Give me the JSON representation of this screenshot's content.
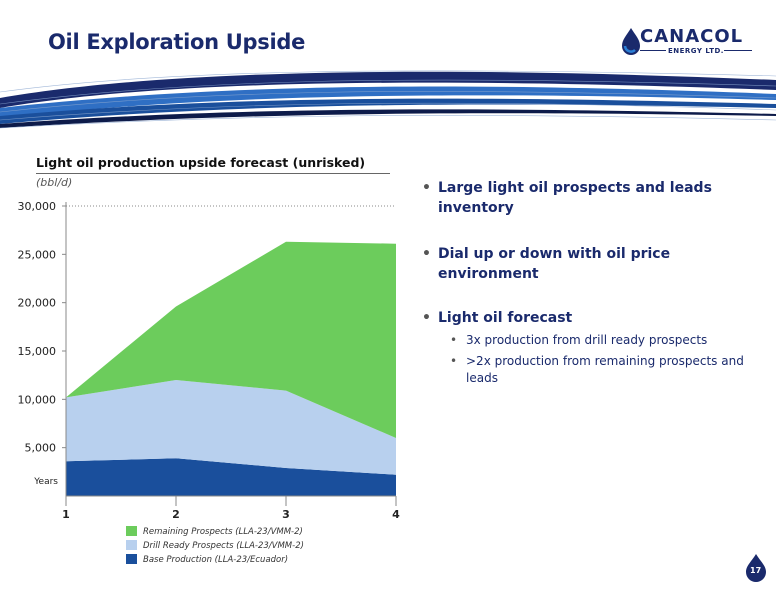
{
  "slide": {
    "title": "Oil Exploration Upside",
    "page_number": "17"
  },
  "logo": {
    "name": "CANACOL",
    "subtitle": "ENERGY LTD."
  },
  "chart_data": {
    "type": "area",
    "stacked": true,
    "title": "Light oil production upside forecast (unrisked)",
    "unit": "(bbl/d)",
    "xlabel": "Years",
    "categories": [
      "1",
      "2",
      "3",
      "4"
    ],
    "ylim": [
      0,
      30000
    ],
    "yticks": [
      "5,000",
      "10,000",
      "15,000",
      "20,000",
      "25,000",
      "30,000"
    ],
    "ytick_values": [
      5000,
      10000,
      15000,
      20000,
      25000,
      30000
    ],
    "series": [
      {
        "name": "Base Production (LLA-23/Ecuador)",
        "values": [
          3600,
          3900,
          2900,
          2200
        ],
        "color": "#1a4f9c"
      },
      {
        "name": "Drill Ready Prospects (LLA-23/VMM-2)",
        "values": [
          6600,
          8100,
          8000,
          3800
        ],
        "color": "#b8d0ee"
      },
      {
        "name": "Remaining Prospects (LLA-23/VMM-2)",
        "values": [
          0,
          7600,
          15400,
          20100
        ],
        "color": "#6ccc5c"
      }
    ],
    "legend_order": [
      2,
      1,
      0
    ],
    "grid": "dotted-top"
  },
  "bullets": [
    {
      "text": "Large light oil prospects and leads inventory",
      "sub": []
    },
    {
      "text": "Dial up or down with oil price environment",
      "sub": []
    },
    {
      "text": "Light oil forecast",
      "sub": [
        "3x production from drill ready prospects",
        ">2x production from remaining prospects and leads"
      ]
    }
  ]
}
